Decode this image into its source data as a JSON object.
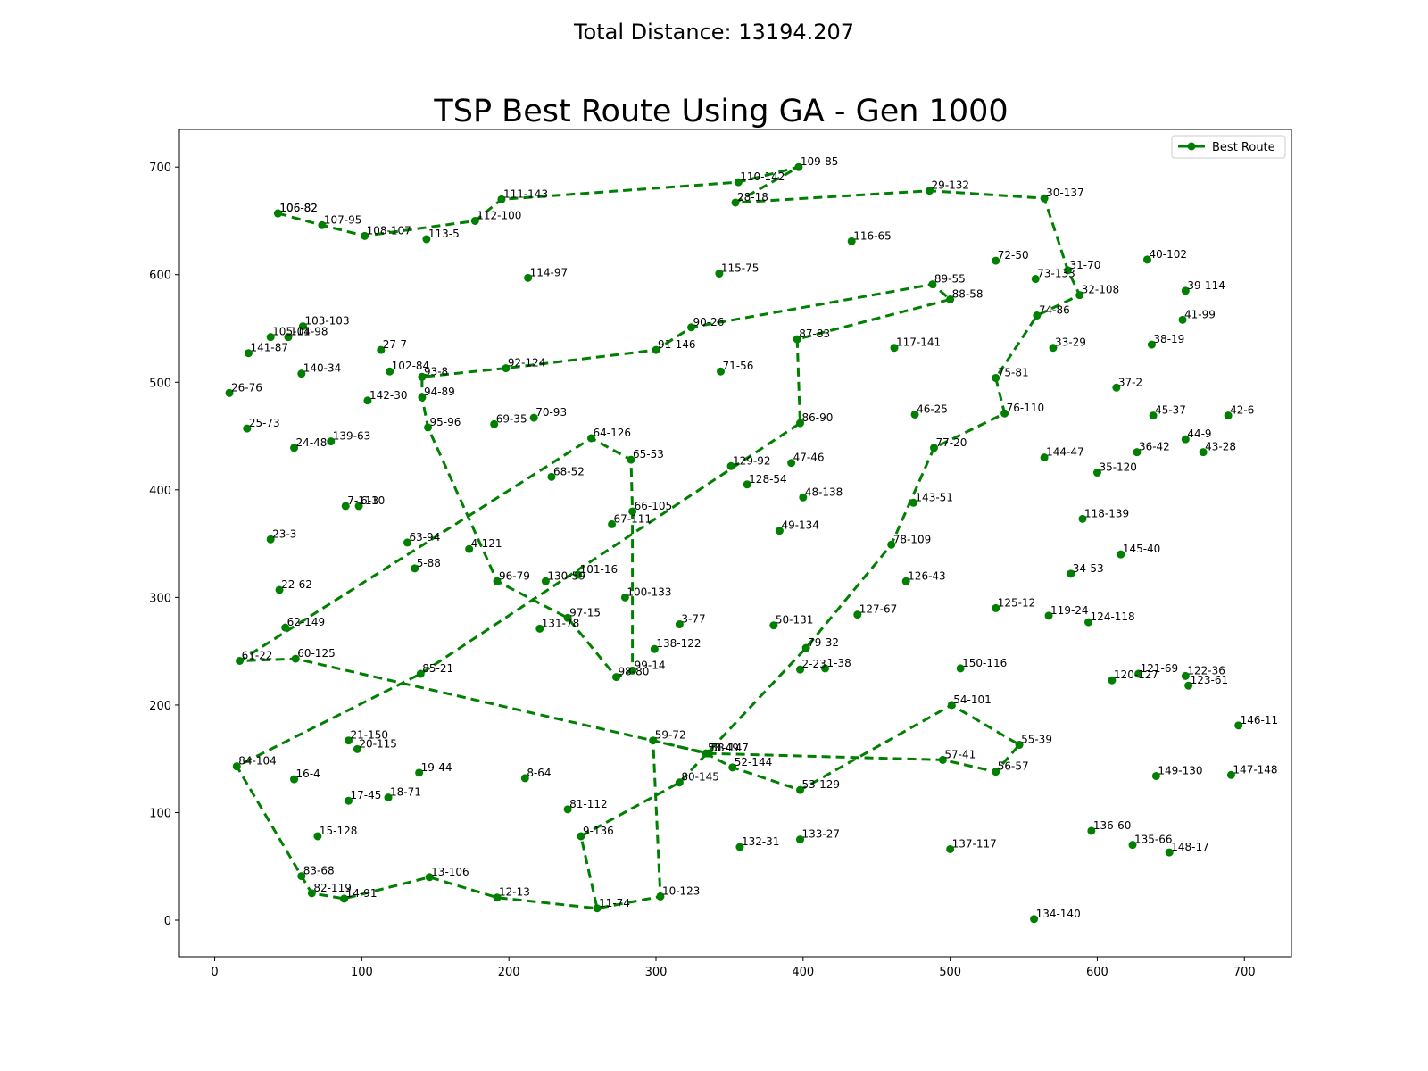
{
  "suptitle": "Total Distance: 13194.207",
  "chart_data": {
    "type": "line",
    "title": "TSP Best Route Using GA - Gen 1000",
    "xlabel": "",
    "ylabel": "",
    "xlim": [
      -24,
      732
    ],
    "ylim": [
      -34,
      735
    ],
    "xticks": [
      0,
      100,
      200,
      300,
      400,
      500,
      600,
      700
    ],
    "yticks": [
      0,
      100,
      200,
      300,
      400,
      500,
      600,
      700
    ],
    "grid": false,
    "legend": {
      "placement": "top-right",
      "entries": [
        "Best Route"
      ]
    },
    "series": [
      {
        "name": "Best Route",
        "color": "#008000",
        "linestyle": "dashed",
        "marker": "circle",
        "points": [
          {
            "label": "106-82",
            "x": 43,
            "y": 657
          },
          {
            "label": "107-95",
            "x": 73,
            "y": 646
          },
          {
            "label": "108-107",
            "x": 102,
            "y": 636
          },
          {
            "label": "112-100",
            "x": 177,
            "y": 650
          },
          {
            "label": "111-143",
            "x": 195,
            "y": 670
          },
          {
            "label": "110-142",
            "x": 356,
            "y": 686
          },
          {
            "label": "109-85",
            "x": 397,
            "y": 700
          },
          {
            "label": "28-18",
            "x": 354,
            "y": 667
          },
          {
            "label": "29-132",
            "x": 486,
            "y": 678
          },
          {
            "label": "30-137",
            "x": 564,
            "y": 671
          },
          {
            "label": "31-70",
            "x": 580,
            "y": 604
          },
          {
            "label": "32-108",
            "x": 588,
            "y": 581
          },
          {
            "label": "74-86",
            "x": 559,
            "y": 562
          },
          {
            "label": "75-81",
            "x": 531,
            "y": 504
          },
          {
            "label": "76-110",
            "x": 537,
            "y": 471
          },
          {
            "label": "77-20",
            "x": 489,
            "y": 439
          },
          {
            "label": "78-109",
            "x": 460,
            "y": 349
          },
          {
            "label": "79-32",
            "x": 402,
            "y": 253
          },
          {
            "label": "80-145",
            "x": 316,
            "y": 128
          },
          {
            "label": "67-111",
            "x": 270,
            "y": 368
          },
          {
            "label": "69-35",
            "x": 190,
            "y": 461
          },
          {
            "label": "70-93",
            "x": 217,
            "y": 467
          },
          {
            "label": "71-56",
            "x": 344,
            "y": 510
          },
          {
            "label": "87-83",
            "x": 396,
            "y": 540
          },
          {
            "label": "88-58",
            "x": 500,
            "y": 577
          },
          {
            "label": "89-55",
            "x": 488,
            "y": 591
          },
          {
            "label": "90-26",
            "x": 324,
            "y": 551
          },
          {
            "label": "91-146",
            "x": 300,
            "y": 530
          },
          {
            "label": "92-124",
            "x": 198,
            "y": 513
          },
          {
            "label": "93-8",
            "x": 141,
            "y": 505
          },
          {
            "label": "94-89",
            "x": 141,
            "y": 486
          },
          {
            "label": "95-96",
            "x": 145,
            "y": 458
          },
          {
            "label": "96-79",
            "x": 192,
            "y": 315
          },
          {
            "label": "97-15",
            "x": 240,
            "y": 281
          },
          {
            "label": "98-80",
            "x": 273,
            "y": 226
          },
          {
            "label": "99-14",
            "x": 284,
            "y": 232
          },
          {
            "label": "100-133",
            "x": 279,
            "y": 300
          },
          {
            "label": "101-16",
            "x": 247,
            "y": 321
          },
          {
            "label": "102-84",
            "x": 119,
            "y": 510
          },
          {
            "label": "103-103",
            "x": 60,
            "y": 552
          },
          {
            "label": "104-98",
            "x": 50,
            "y": 542
          },
          {
            "label": "105-11",
            "x": 38,
            "y": 542
          },
          {
            "label": "106-82",
            "x": 43,
            "y": 657
          }
        ],
        "extra_points": [
          {
            "label": "141-87",
            "x": 23,
            "y": 527
          },
          {
            "label": "140-34",
            "x": 59,
            "y": 508
          },
          {
            "label": "142-30",
            "x": 104,
            "y": 483
          },
          {
            "label": "27-7",
            "x": 113,
            "y": 530
          },
          {
            "label": "26-76",
            "x": 10,
            "y": 490
          },
          {
            "label": "25-73",
            "x": 22,
            "y": 457
          },
          {
            "label": "24-48",
            "x": 54,
            "y": 439
          },
          {
            "label": "139-63",
            "x": 79,
            "y": 445
          },
          {
            "label": "23-3",
            "x": 38,
            "y": 354
          },
          {
            "label": "22-62",
            "x": 44,
            "y": 307
          },
          {
            "label": "62-149",
            "x": 48,
            "y": 272
          },
          {
            "label": "61-22",
            "x": 17,
            "y": 241
          },
          {
            "label": "60-125",
            "x": 55,
            "y": 243
          },
          {
            "label": "85-21",
            "x": 140,
            "y": 229
          },
          {
            "label": "84-104",
            "x": 15,
            "y": 143
          },
          {
            "label": "21-150",
            "x": 91,
            "y": 167
          },
          {
            "label": "20-115",
            "x": 97,
            "y": 159
          },
          {
            "label": "19-44",
            "x": 139,
            "y": 137
          },
          {
            "label": "18-71",
            "x": 118,
            "y": 114
          },
          {
            "label": "17-45",
            "x": 91,
            "y": 111
          },
          {
            "label": "16-4",
            "x": 54,
            "y": 131
          },
          {
            "label": "15-128",
            "x": 70,
            "y": 78
          },
          {
            "label": "83-68",
            "x": 59,
            "y": 41
          },
          {
            "label": "82-119",
            "x": 66,
            "y": 25
          },
          {
            "label": "14-91",
            "x": 88,
            "y": 20
          },
          {
            "label": "13-106",
            "x": 146,
            "y": 40
          },
          {
            "label": "12-13",
            "x": 192,
            "y": 21
          },
          {
            "label": "11-74",
            "x": 260,
            "y": 11
          },
          {
            "label": "10-123",
            "x": 303,
            "y": 22
          },
          {
            "label": "9-136",
            "x": 249,
            "y": 78
          },
          {
            "label": "8-64",
            "x": 211,
            "y": 132
          },
          {
            "label": "7-113",
            "x": 89,
            "y": 385
          },
          {
            "label": "6-10",
            "x": 98,
            "y": 385
          },
          {
            "label": "5-88",
            "x": 136,
            "y": 327
          },
          {
            "label": "4-121",
            "x": 173,
            "y": 345
          },
          {
            "label": "63-94",
            "x": 131,
            "y": 351
          },
          {
            "label": "64-126",
            "x": 256,
            "y": 448
          },
          {
            "label": "65-53",
            "x": 283,
            "y": 428
          },
          {
            "label": "66-105",
            "x": 284,
            "y": 380
          },
          {
            "label": "68-52",
            "x": 229,
            "y": 412
          },
          {
            "label": "130-59",
            "x": 225,
            "y": 315
          },
          {
            "label": "131-78",
            "x": 221,
            "y": 271
          },
          {
            "label": "3-77",
            "x": 316,
            "y": 275
          },
          {
            "label": "138-122",
            "x": 299,
            "y": 252
          },
          {
            "label": "2-23",
            "x": 398,
            "y": 233
          },
          {
            "label": "1-38",
            "x": 415,
            "y": 234
          },
          {
            "label": "150-116",
            "x": 507,
            "y": 234
          },
          {
            "label": "59-72",
            "x": 298,
            "y": 167
          },
          {
            "label": "58-49",
            "x": 334,
            "y": 155
          },
          {
            "label": "58-147",
            "x": 336,
            "y": 155
          },
          {
            "label": "52-144",
            "x": 352,
            "y": 142
          },
          {
            "label": "53-129",
            "x": 398,
            "y": 121
          },
          {
            "label": "54-101",
            "x": 501,
            "y": 200
          },
          {
            "label": "55-39",
            "x": 547,
            "y": 163
          },
          {
            "label": "56-57",
            "x": 531,
            "y": 138
          },
          {
            "label": "57-41",
            "x": 495,
            "y": 149
          },
          {
            "label": "81-112",
            "x": 240,
            "y": 103
          },
          {
            "label": "132-31",
            "x": 357,
            "y": 68
          },
          {
            "label": "133-27",
            "x": 398,
            "y": 75
          },
          {
            "label": "137-117",
            "x": 500,
            "y": 66
          },
          {
            "label": "134-140",
            "x": 557,
            "y": 1
          },
          {
            "label": "136-60",
            "x": 596,
            "y": 83
          },
          {
            "label": "135-66",
            "x": 624,
            "y": 70
          },
          {
            "label": "148-17",
            "x": 649,
            "y": 63
          },
          {
            "label": "147-148",
            "x": 691,
            "y": 135
          },
          {
            "label": "146-11",
            "x": 696,
            "y": 181
          },
          {
            "label": "149-130",
            "x": 640,
            "y": 134
          },
          {
            "label": "123-61",
            "x": 662,
            "y": 218
          },
          {
            "label": "122-36",
            "x": 660,
            "y": 227
          },
          {
            "label": "121-69",
            "x": 628,
            "y": 229
          },
          {
            "label": "120-127",
            "x": 610,
            "y": 223
          },
          {
            "label": "124-118",
            "x": 594,
            "y": 277
          },
          {
            "label": "119-24",
            "x": 567,
            "y": 283
          },
          {
            "label": "125-12",
            "x": 531,
            "y": 290
          },
          {
            "label": "126-43",
            "x": 470,
            "y": 315
          },
          {
            "label": "127-67",
            "x": 437,
            "y": 284
          },
          {
            "label": "49-134",
            "x": 384,
            "y": 362
          },
          {
            "label": "50-131",
            "x": 380,
            "y": 274
          },
          {
            "label": "48-138",
            "x": 400,
            "y": 393
          },
          {
            "label": "47-46",
            "x": 392,
            "y": 425
          },
          {
            "label": "128-54",
            "x": 362,
            "y": 405
          },
          {
            "label": "129-92",
            "x": 351,
            "y": 422
          },
          {
            "label": "86-90",
            "x": 398,
            "y": 462
          },
          {
            "label": "46-25",
            "x": 476,
            "y": 470
          },
          {
            "label": "45-37",
            "x": 638,
            "y": 469
          },
          {
            "label": "44-9",
            "x": 660,
            "y": 447
          },
          {
            "label": "43-28",
            "x": 672,
            "y": 435
          },
          {
            "label": "42-6",
            "x": 689,
            "y": 469
          },
          {
            "label": "41-99",
            "x": 658,
            "y": 558
          },
          {
            "label": "39-114",
            "x": 660,
            "y": 585
          },
          {
            "label": "40-102",
            "x": 634,
            "y": 614
          },
          {
            "label": "38-19",
            "x": 637,
            "y": 535
          },
          {
            "label": "37-2",
            "x": 613,
            "y": 495
          },
          {
            "label": "36-42",
            "x": 627,
            "y": 435
          },
          {
            "label": "35-120",
            "x": 600,
            "y": 416
          },
          {
            "label": "34-53",
            "x": 582,
            "y": 322
          },
          {
            "label": "33-29",
            "x": 570,
            "y": 532
          },
          {
            "label": "144-47",
            "x": 564,
            "y": 430
          },
          {
            "label": "143-51",
            "x": 475,
            "y": 388
          },
          {
            "label": "118-139",
            "x": 590,
            "y": 373
          },
          {
            "label": "145-40",
            "x": 616,
            "y": 340
          },
          {
            "label": "117-141",
            "x": 462,
            "y": 532
          },
          {
            "label": "116-65",
            "x": 433,
            "y": 631
          },
          {
            "label": "115-75",
            "x": 343,
            "y": 601
          },
          {
            "label": "114-97",
            "x": 213,
            "y": 597
          },
          {
            "label": "113-5",
            "x": 144,
            "y": 633
          },
          {
            "label": "73-133",
            "x": 558,
            "y": 596
          },
          {
            "label": "72-50",
            "x": 531,
            "y": 613
          }
        ]
      }
    ]
  }
}
